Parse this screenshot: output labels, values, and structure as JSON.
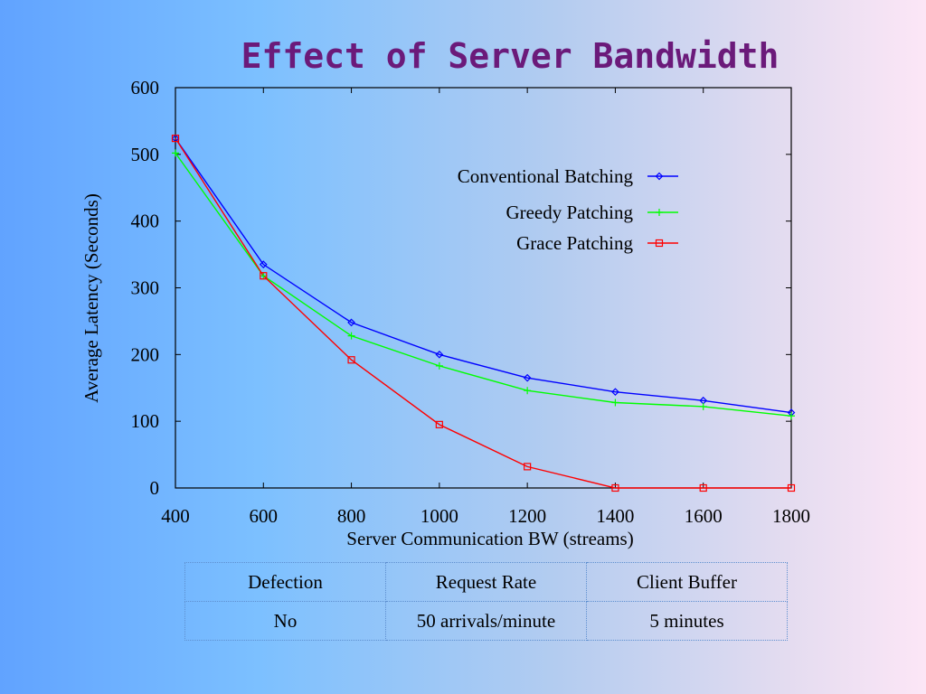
{
  "slide": {
    "title": "Effect of Server Bandwidth"
  },
  "chart_data": {
    "type": "line",
    "xlabel": "Server Communication BW (streams)",
    "ylabel": "Average Latency (Seconds)",
    "xlim": [
      400,
      1800
    ],
    "ylim": [
      0,
      600
    ],
    "xticks": [
      "400",
      "600",
      "800",
      "1000",
      "1200",
      "1400",
      "1600",
      "1800"
    ],
    "yticks": [
      "0",
      "100",
      "200",
      "300",
      "400",
      "500",
      "600"
    ],
    "grid": false,
    "legend_position": "top-right",
    "x": [
      400,
      600,
      800,
      1000,
      1200,
      1400,
      1600,
      1800
    ],
    "series": [
      {
        "name": "Conventional Batching",
        "color": "#0000ff",
        "marker": "diamond",
        "values": [
          524,
          335,
          248,
          200,
          165,
          144,
          131,
          113
        ]
      },
      {
        "name": "Greedy Patching",
        "color": "#00ff00",
        "marker": "plus",
        "values": [
          502,
          318,
          228,
          183,
          146,
          128,
          122,
          108
        ]
      },
      {
        "name": "Grace Patching",
        "color": "#ff0000",
        "marker": "square",
        "values": [
          524,
          318,
          192,
          95,
          32,
          0,
          0,
          0
        ]
      }
    ]
  },
  "table": {
    "headers": [
      "Defection",
      "Request Rate",
      "Client Buffer"
    ],
    "row": [
      "No",
      "50 arrivals/minute",
      "5 minutes"
    ]
  }
}
